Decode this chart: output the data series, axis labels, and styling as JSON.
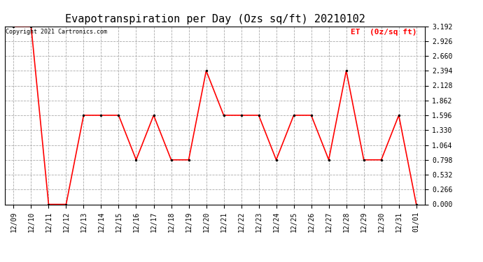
{
  "title": "Evapotranspiration per Day (Ozs sq/ft) 20210102",
  "legend_label": "ET  (0z/sq ft)",
  "copyright_text": "Copyright 2021 Cartronics.com",
  "x_labels": [
    "12/09",
    "12/10",
    "12/11",
    "12/12",
    "12/13",
    "12/14",
    "12/15",
    "12/16",
    "12/17",
    "12/18",
    "12/19",
    "12/20",
    "12/21",
    "12/22",
    "12/23",
    "12/24",
    "12/25",
    "12/26",
    "12/27",
    "12/28",
    "12/29",
    "12/30",
    "12/31",
    "01/01"
  ],
  "y_values": [
    3.192,
    3.192,
    0.0,
    0.0,
    1.596,
    1.596,
    1.596,
    0.798,
    1.596,
    0.798,
    0.798,
    2.394,
    1.596,
    1.596,
    1.596,
    0.798,
    1.596,
    1.596,
    0.798,
    2.394,
    0.798,
    0.798,
    1.596,
    0.0
  ],
  "ylim_min": 0.0,
  "ylim_max": 3.192,
  "yticks": [
    0.0,
    0.266,
    0.532,
    0.798,
    1.064,
    1.33,
    1.596,
    1.862,
    2.128,
    2.394,
    2.66,
    2.926,
    3.192
  ],
  "line_color": "red",
  "marker_color": "black",
  "marker_size": 3,
  "line_width": 1.2,
  "background_color": "white",
  "grid_color": "#aaaaaa",
  "title_fontsize": 11,
  "tick_fontsize": 7,
  "copyright_fontsize": 6,
  "legend_color": "red",
  "legend_fontsize": 8
}
